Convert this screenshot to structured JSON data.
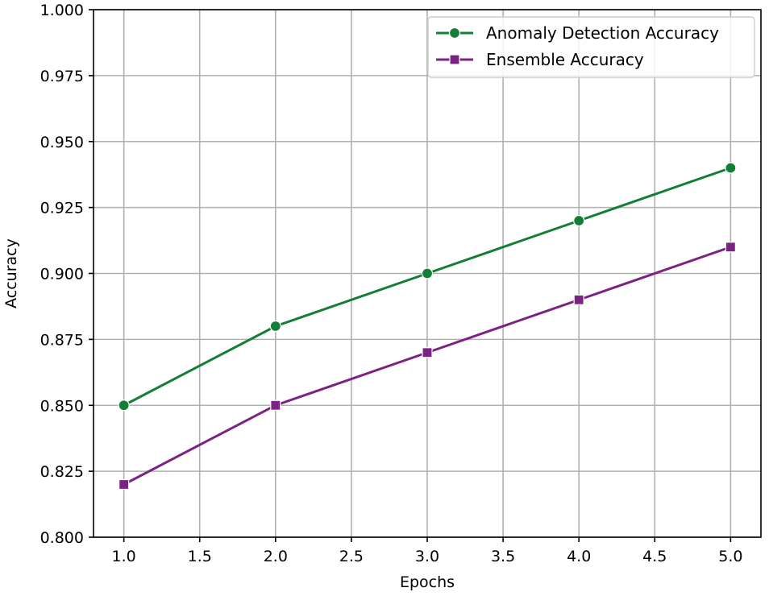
{
  "chart_data": {
    "type": "line",
    "title": "",
    "xlabel": "Epochs",
    "ylabel": "Accuracy",
    "x": [
      1,
      2,
      3,
      4,
      5
    ],
    "xlim": [
      0.8,
      5.2
    ],
    "ylim": [
      0.8,
      1.0
    ],
    "xticks": [
      "1.0",
      "1.5",
      "2.0",
      "2.5",
      "3.0",
      "3.5",
      "4.0",
      "4.5",
      "5.0"
    ],
    "yticks": [
      "0.800",
      "0.825",
      "0.850",
      "0.875",
      "0.900",
      "0.925",
      "0.950",
      "0.975",
      "1.000"
    ],
    "grid": true,
    "legend_position": "top-right",
    "series": [
      {
        "name": "Anomaly Detection Accuracy",
        "values": [
          0.85,
          0.88,
          0.9,
          0.92,
          0.94
        ],
        "color": "#137e36",
        "marker": "circle"
      },
      {
        "name": "Ensemble Accuracy",
        "values": [
          0.82,
          0.85,
          0.87,
          0.89,
          0.91
        ],
        "color": "#7b2383",
        "marker": "square"
      }
    ]
  }
}
